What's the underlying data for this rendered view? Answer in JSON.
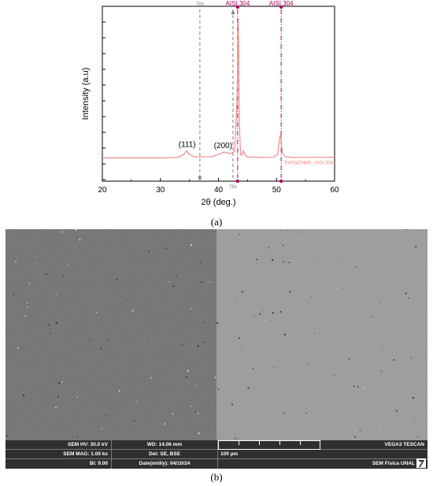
{
  "chart_data": {
    "type": "line",
    "title": "",
    "xlabel": "2θ (deg.)",
    "ylabel": "Intensity (a.u)",
    "xlim": [
      20,
      60
    ],
    "xticks": [
      20,
      30,
      40,
      50,
      60
    ],
    "grid": false,
    "legend": "none",
    "series": [
      {
        "name": "TiAlTaZrNbN - AISI 304",
        "color": "#f08080",
        "x": [
          20,
          30,
          33,
          34,
          34.5,
          35,
          36,
          39,
          40,
          41,
          42,
          42.8,
          43.2,
          43.4,
          43.6,
          43.8,
          44,
          44.3,
          44.6,
          45,
          47,
          49.5,
          50.2,
          50.5,
          50.7,
          51,
          51.5,
          53,
          60
        ],
        "y": [
          10,
          10,
          10.2,
          11.5,
          13,
          11.5,
          10.4,
          10.5,
          11.5,
          12.5,
          11.8,
          12.8,
          35,
          70,
          25,
          11.5,
          11,
          13,
          11,
          10.4,
          10.2,
          10.3,
          11.5,
          18,
          20,
          12,
          10.5,
          10.2,
          10.3
        ]
      }
    ],
    "annotations": [
      {
        "text": "(111)",
        "x": 34.6,
        "y": 13
      },
      {
        "text": "(200)",
        "x": 40.8,
        "y": 12.5
      }
    ],
    "reference_lines": [
      {
        "text": "TiN",
        "x": 36.8,
        "position": "top",
        "color": "#7f7f7f"
      },
      {
        "text": "TiN",
        "x": 42.5,
        "position": "bottom",
        "color": "#7f7f7f"
      },
      {
        "text": "AISI 304",
        "x": 43.3,
        "position": "top",
        "color": "#b0005a"
      },
      {
        "text": "AISI 304",
        "x": 50.8,
        "position": "top",
        "color": "#b0005a"
      }
    ]
  },
  "panel_labels": {
    "a": "(a)",
    "b": "(b)"
  },
  "sem": {
    "hv": "SEM HV: 30.0 kV",
    "mag": "SEM MAG: 1.00 kx",
    "bi": "BI: 9.00",
    "wd": "WD: 14.06 mm",
    "det": "Det: SE, BSE",
    "date": "Date(m/d/y): 04/10/24",
    "scale": "100 µm",
    "brand": "VEGA3 TESCAN",
    "lab": "SEM Física UNAL",
    "left_tone": "#717171",
    "right_tone": "#9b9b9b"
  }
}
